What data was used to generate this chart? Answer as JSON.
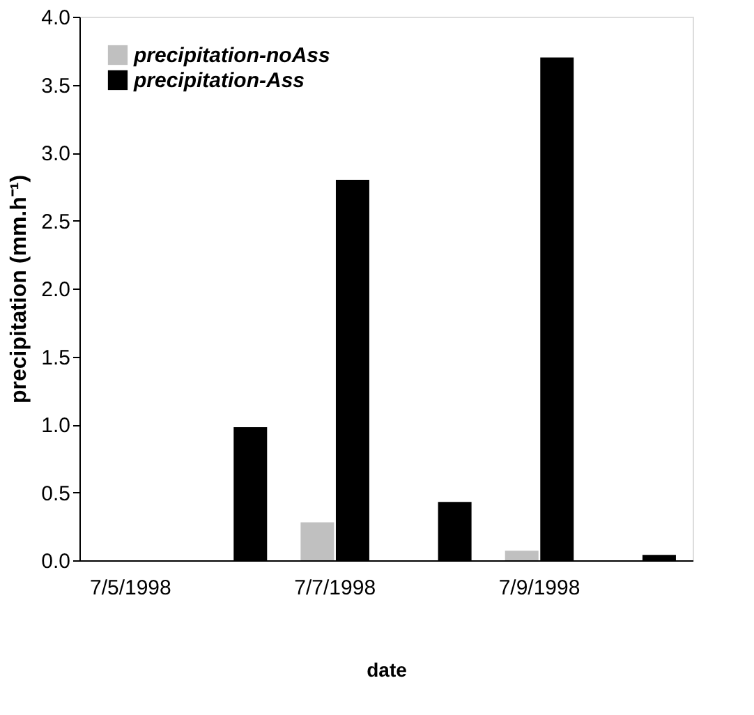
{
  "chart_data": {
    "type": "bar",
    "xlabel": "date",
    "ylabel": "precipitation (mm.h⁻¹)",
    "categories": [
      "7/5/1998",
      null,
      "7/7/1998",
      null,
      "7/9/1998",
      null
    ],
    "series": [
      {
        "name": "precipitation-noAss",
        "color": "#c0c0c0",
        "values": [
          0,
          0,
          0.28,
          0,
          0.07,
          0
        ]
      },
      {
        "name": "precipitation-Ass",
        "color": "#000000",
        "values": [
          0,
          0.98,
          2.8,
          0.43,
          3.7,
          0.04
        ]
      }
    ],
    "ylim": [
      0,
      4.0
    ],
    "yticks": [
      {
        "value": 0,
        "label": "0.0"
      },
      {
        "value": 0.5,
        "label": "0.5"
      },
      {
        "value": 1,
        "label": "1.0"
      },
      {
        "value": 1.5,
        "label": "1.5"
      },
      {
        "value": 2,
        "label": "2.0"
      },
      {
        "value": 2.5,
        "label": "2.5"
      },
      {
        "value": 3,
        "label": "3.0"
      },
      {
        "value": 3.5,
        "label": "3.5"
      },
      {
        "value": 4,
        "label": "4.0"
      }
    ],
    "grid": false,
    "legend": "top left"
  }
}
